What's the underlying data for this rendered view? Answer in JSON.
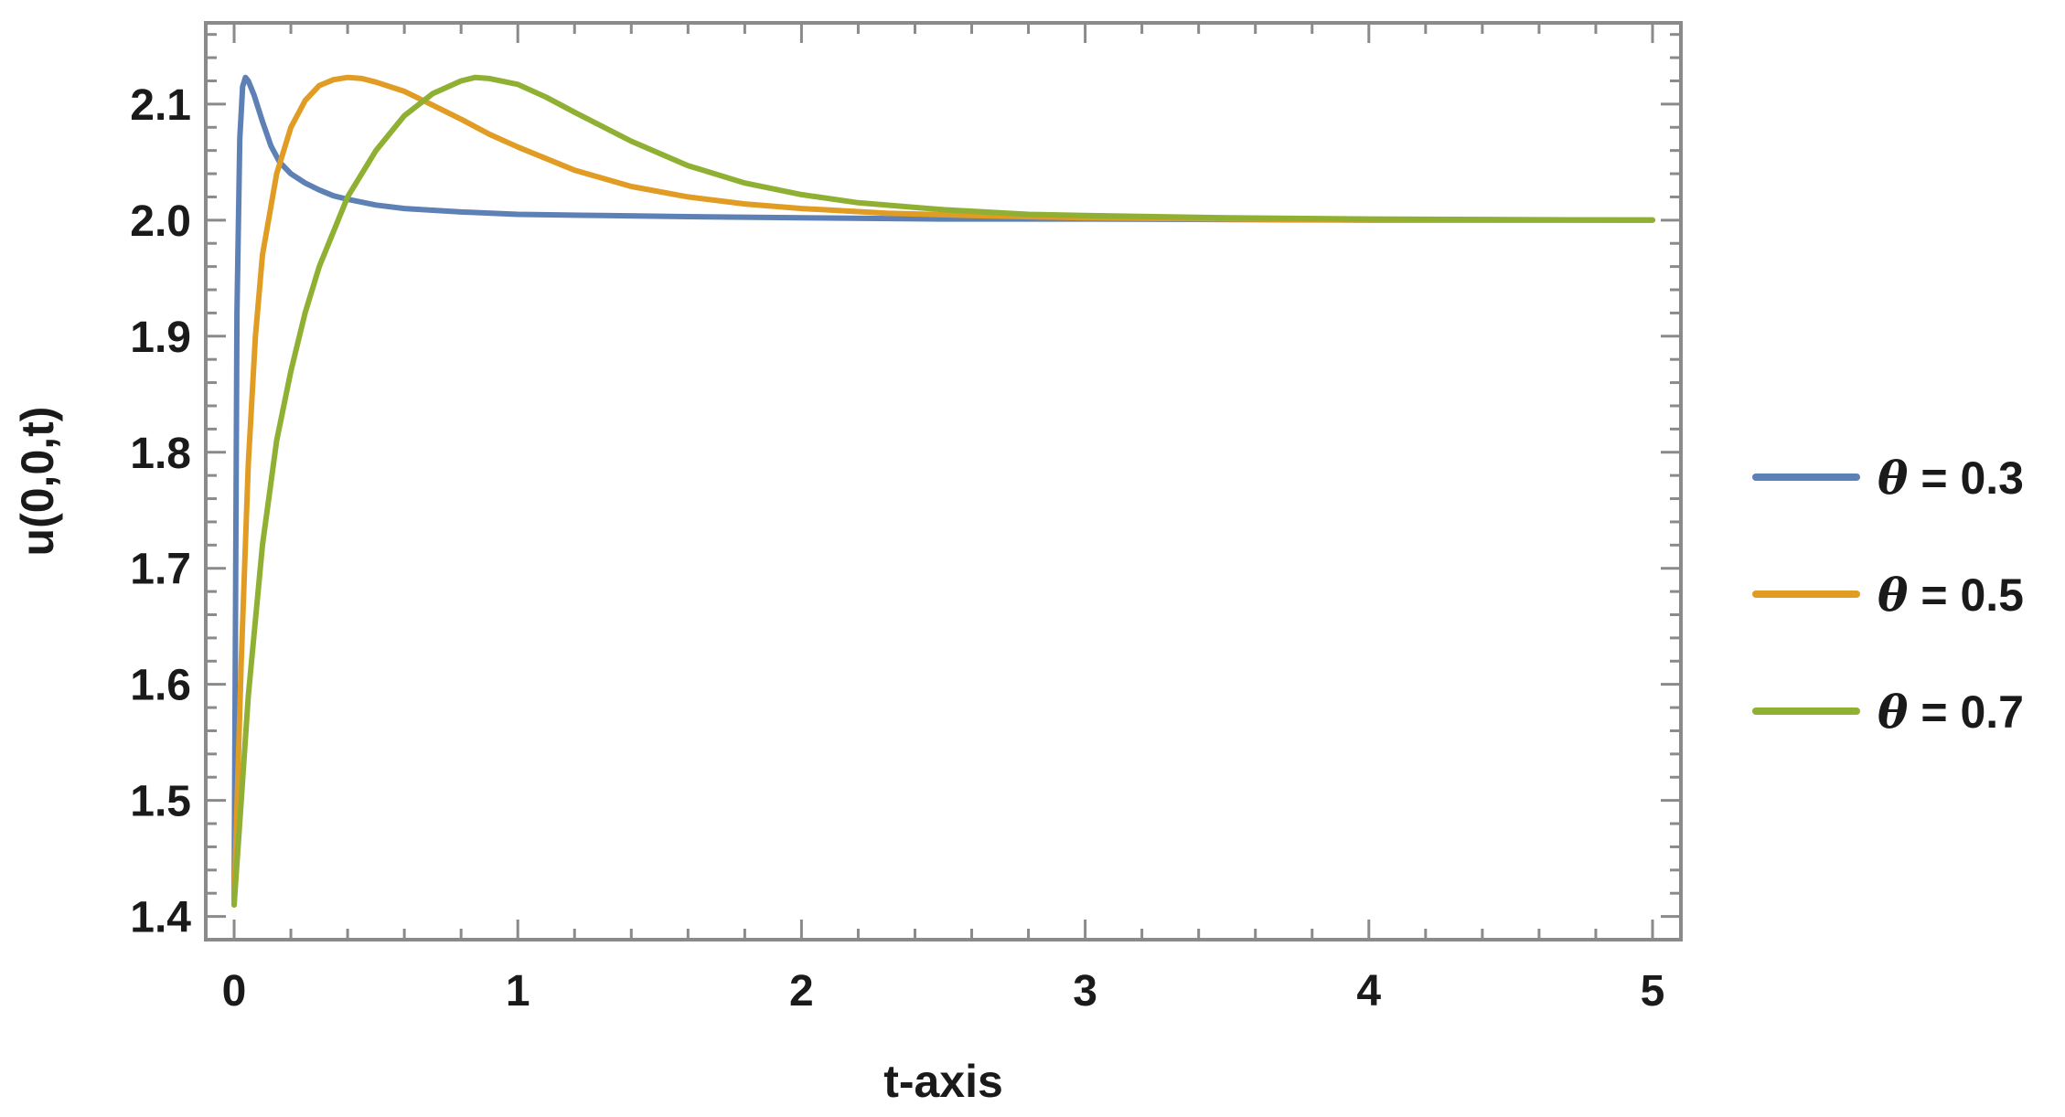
{
  "chart_data": {
    "type": "line",
    "title": "",
    "xlabel": "t-axis",
    "ylabel": "u(0,0,t)",
    "xlim": [
      -0.1,
      5.1
    ],
    "ylim": [
      1.38,
      2.17
    ],
    "x_ticks": [
      0,
      1,
      2,
      3,
      4,
      5
    ],
    "x_tick_labels": [
      "0",
      "1",
      "2",
      "3",
      "4",
      "5"
    ],
    "y_ticks": [
      1.4,
      1.5,
      1.6,
      1.7,
      1.8,
      1.9,
      2.0,
      2.1
    ],
    "y_tick_labels": [
      "1.4",
      "1.5",
      "1.6",
      "1.7",
      "1.8",
      "1.9",
      "2.0",
      "2.1"
    ],
    "grid": false,
    "legend_position": "right",
    "series": [
      {
        "name": "θ = 0.3",
        "legend_symbol": "θ",
        "legend_value": "= 0.3",
        "color": "#5e81b5",
        "x": [
          0,
          0.01,
          0.02,
          0.03,
          0.04,
          0.05,
          0.07,
          0.1,
          0.13,
          0.16,
          0.2,
          0.25,
          0.3,
          0.35,
          0.4,
          0.5,
          0.6,
          0.8,
          1.0,
          1.3,
          1.6,
          2.0,
          2.5,
          3.0,
          4.0,
          5.0
        ],
        "y": [
          1.41,
          1.92,
          2.07,
          2.115,
          2.123,
          2.12,
          2.108,
          2.085,
          2.064,
          2.05,
          2.04,
          2.032,
          2.026,
          2.021,
          2.018,
          2.013,
          2.01,
          2.007,
          2.005,
          2.004,
          2.003,
          2.002,
          2.001,
          2.001,
          2.0,
          2.0
        ]
      },
      {
        "name": "θ = 0.5",
        "legend_symbol": "θ",
        "legend_value": "= 0.5",
        "color": "#e19c24",
        "x": [
          0,
          0.025,
          0.05,
          0.075,
          0.1,
          0.15,
          0.2,
          0.25,
          0.3,
          0.35,
          0.4,
          0.45,
          0.5,
          0.6,
          0.7,
          0.8,
          0.9,
          1.0,
          1.2,
          1.4,
          1.6,
          1.8,
          2.0,
          2.3,
          2.6,
          3.0,
          3.5,
          4.0,
          5.0
        ],
        "y": [
          1.41,
          1.62,
          1.79,
          1.9,
          1.97,
          2.04,
          2.08,
          2.103,
          2.116,
          2.121,
          2.123,
          2.122,
          2.119,
          2.111,
          2.099,
          2.087,
          2.074,
          2.063,
          2.043,
          2.029,
          2.02,
          2.014,
          2.01,
          2.006,
          2.004,
          2.002,
          2.001,
          2.0,
          2.0
        ]
      },
      {
        "name": "θ = 0.7",
        "legend_symbol": "θ",
        "legend_value": "= 0.7",
        "color": "#8fb032",
        "x": [
          0,
          0.025,
          0.05,
          0.1,
          0.15,
          0.2,
          0.25,
          0.3,
          0.4,
          0.5,
          0.6,
          0.7,
          0.8,
          0.85,
          0.9,
          1.0,
          1.1,
          1.2,
          1.4,
          1.6,
          1.8,
          2.0,
          2.2,
          2.5,
          2.8,
          3.0,
          3.5,
          4.0,
          5.0
        ],
        "y": [
          1.41,
          1.5,
          1.59,
          1.72,
          1.81,
          1.87,
          1.92,
          1.96,
          2.02,
          2.06,
          2.09,
          2.109,
          2.12,
          2.123,
          2.122,
          2.117,
          2.106,
          2.093,
          2.068,
          2.047,
          2.032,
          2.022,
          2.015,
          2.009,
          2.005,
          2.004,
          2.002,
          2.001,
          2.0
        ]
      }
    ]
  }
}
